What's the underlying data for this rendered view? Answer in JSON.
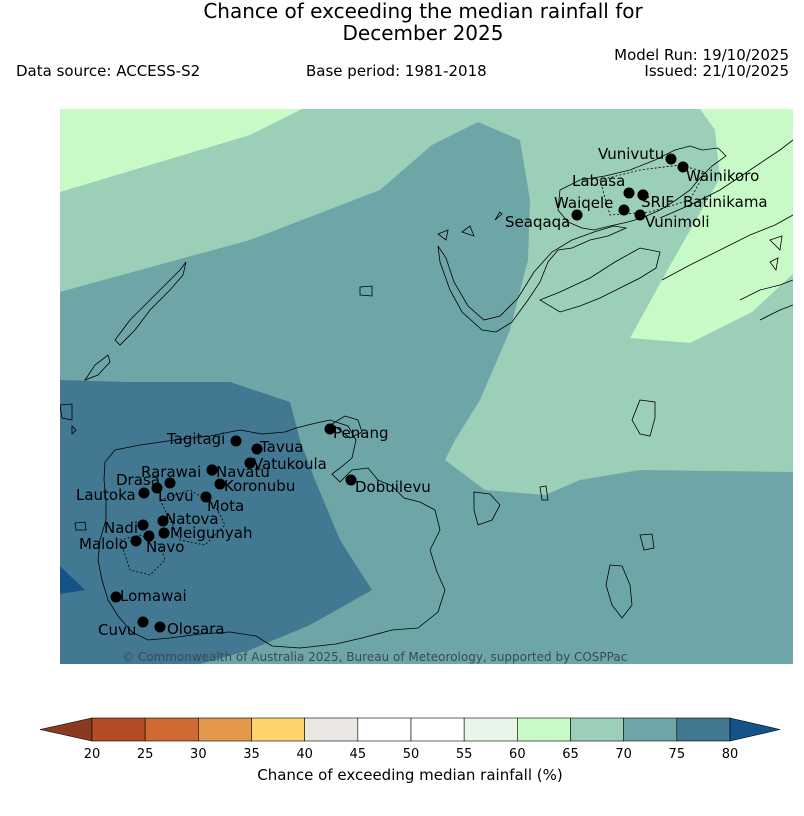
{
  "header": {
    "title_line1": "Chance of exceeding the median rainfall for",
    "title_line2": "December 2025",
    "data_source": "Data source: ACCESS-S2",
    "base_period": "Base period: 1981-2018",
    "model_run": "Model Run: 19/10/2025",
    "issued": "Issued: 21/10/2025"
  },
  "map": {
    "copyright": "© Commonwealth of Australia 2025, Bureau of Meteorology, supported by COSPPac",
    "places": [
      {
        "name": "Vunivutu"
      },
      {
        "name": "Wainikoro"
      },
      {
        "name": "Labasa"
      },
      {
        "name": "SRIF"
      },
      {
        "name": "Batinikama"
      },
      {
        "name": "Waiqele"
      },
      {
        "name": "Seaqaqa"
      },
      {
        "name": "Vunimoli"
      },
      {
        "name": "Penang"
      },
      {
        "name": "Tagitagi"
      },
      {
        "name": "Tavua"
      },
      {
        "name": "Vatukoula"
      },
      {
        "name": "Rarawai"
      },
      {
        "name": "Navatu"
      },
      {
        "name": "Koronubu"
      },
      {
        "name": "Drasa"
      },
      {
        "name": "Lautoka"
      },
      {
        "name": "Lovu"
      },
      {
        "name": "Mota"
      },
      {
        "name": "Dobuilevu"
      },
      {
        "name": "Natova"
      },
      {
        "name": "Nadi"
      },
      {
        "name": "Meigunyah"
      },
      {
        "name": "Malolo"
      },
      {
        "name": "Navo"
      },
      {
        "name": "Lomawai"
      },
      {
        "name": "Cuvu"
      },
      {
        "name": "Olosara"
      }
    ]
  },
  "colorbar": {
    "label": "Chance of exceeding median rainfall (%)",
    "ticks": [
      "20",
      "25",
      "30",
      "35",
      "40",
      "45",
      "50",
      "55",
      "60",
      "65",
      "70",
      "75",
      "80"
    ],
    "colors": [
      "#b54c26",
      "#d06a35",
      "#e3984c",
      "#fdd36b",
      "#ebe7e3",
      "#ffffff",
      "#ffffff",
      "#e8f5e9",
      "#c8fac8",
      "#9bcfb8",
      "#6ea6a8",
      "#437893"
    ],
    "under_color": "#8b3a22",
    "over_color": "#14528a"
  }
}
